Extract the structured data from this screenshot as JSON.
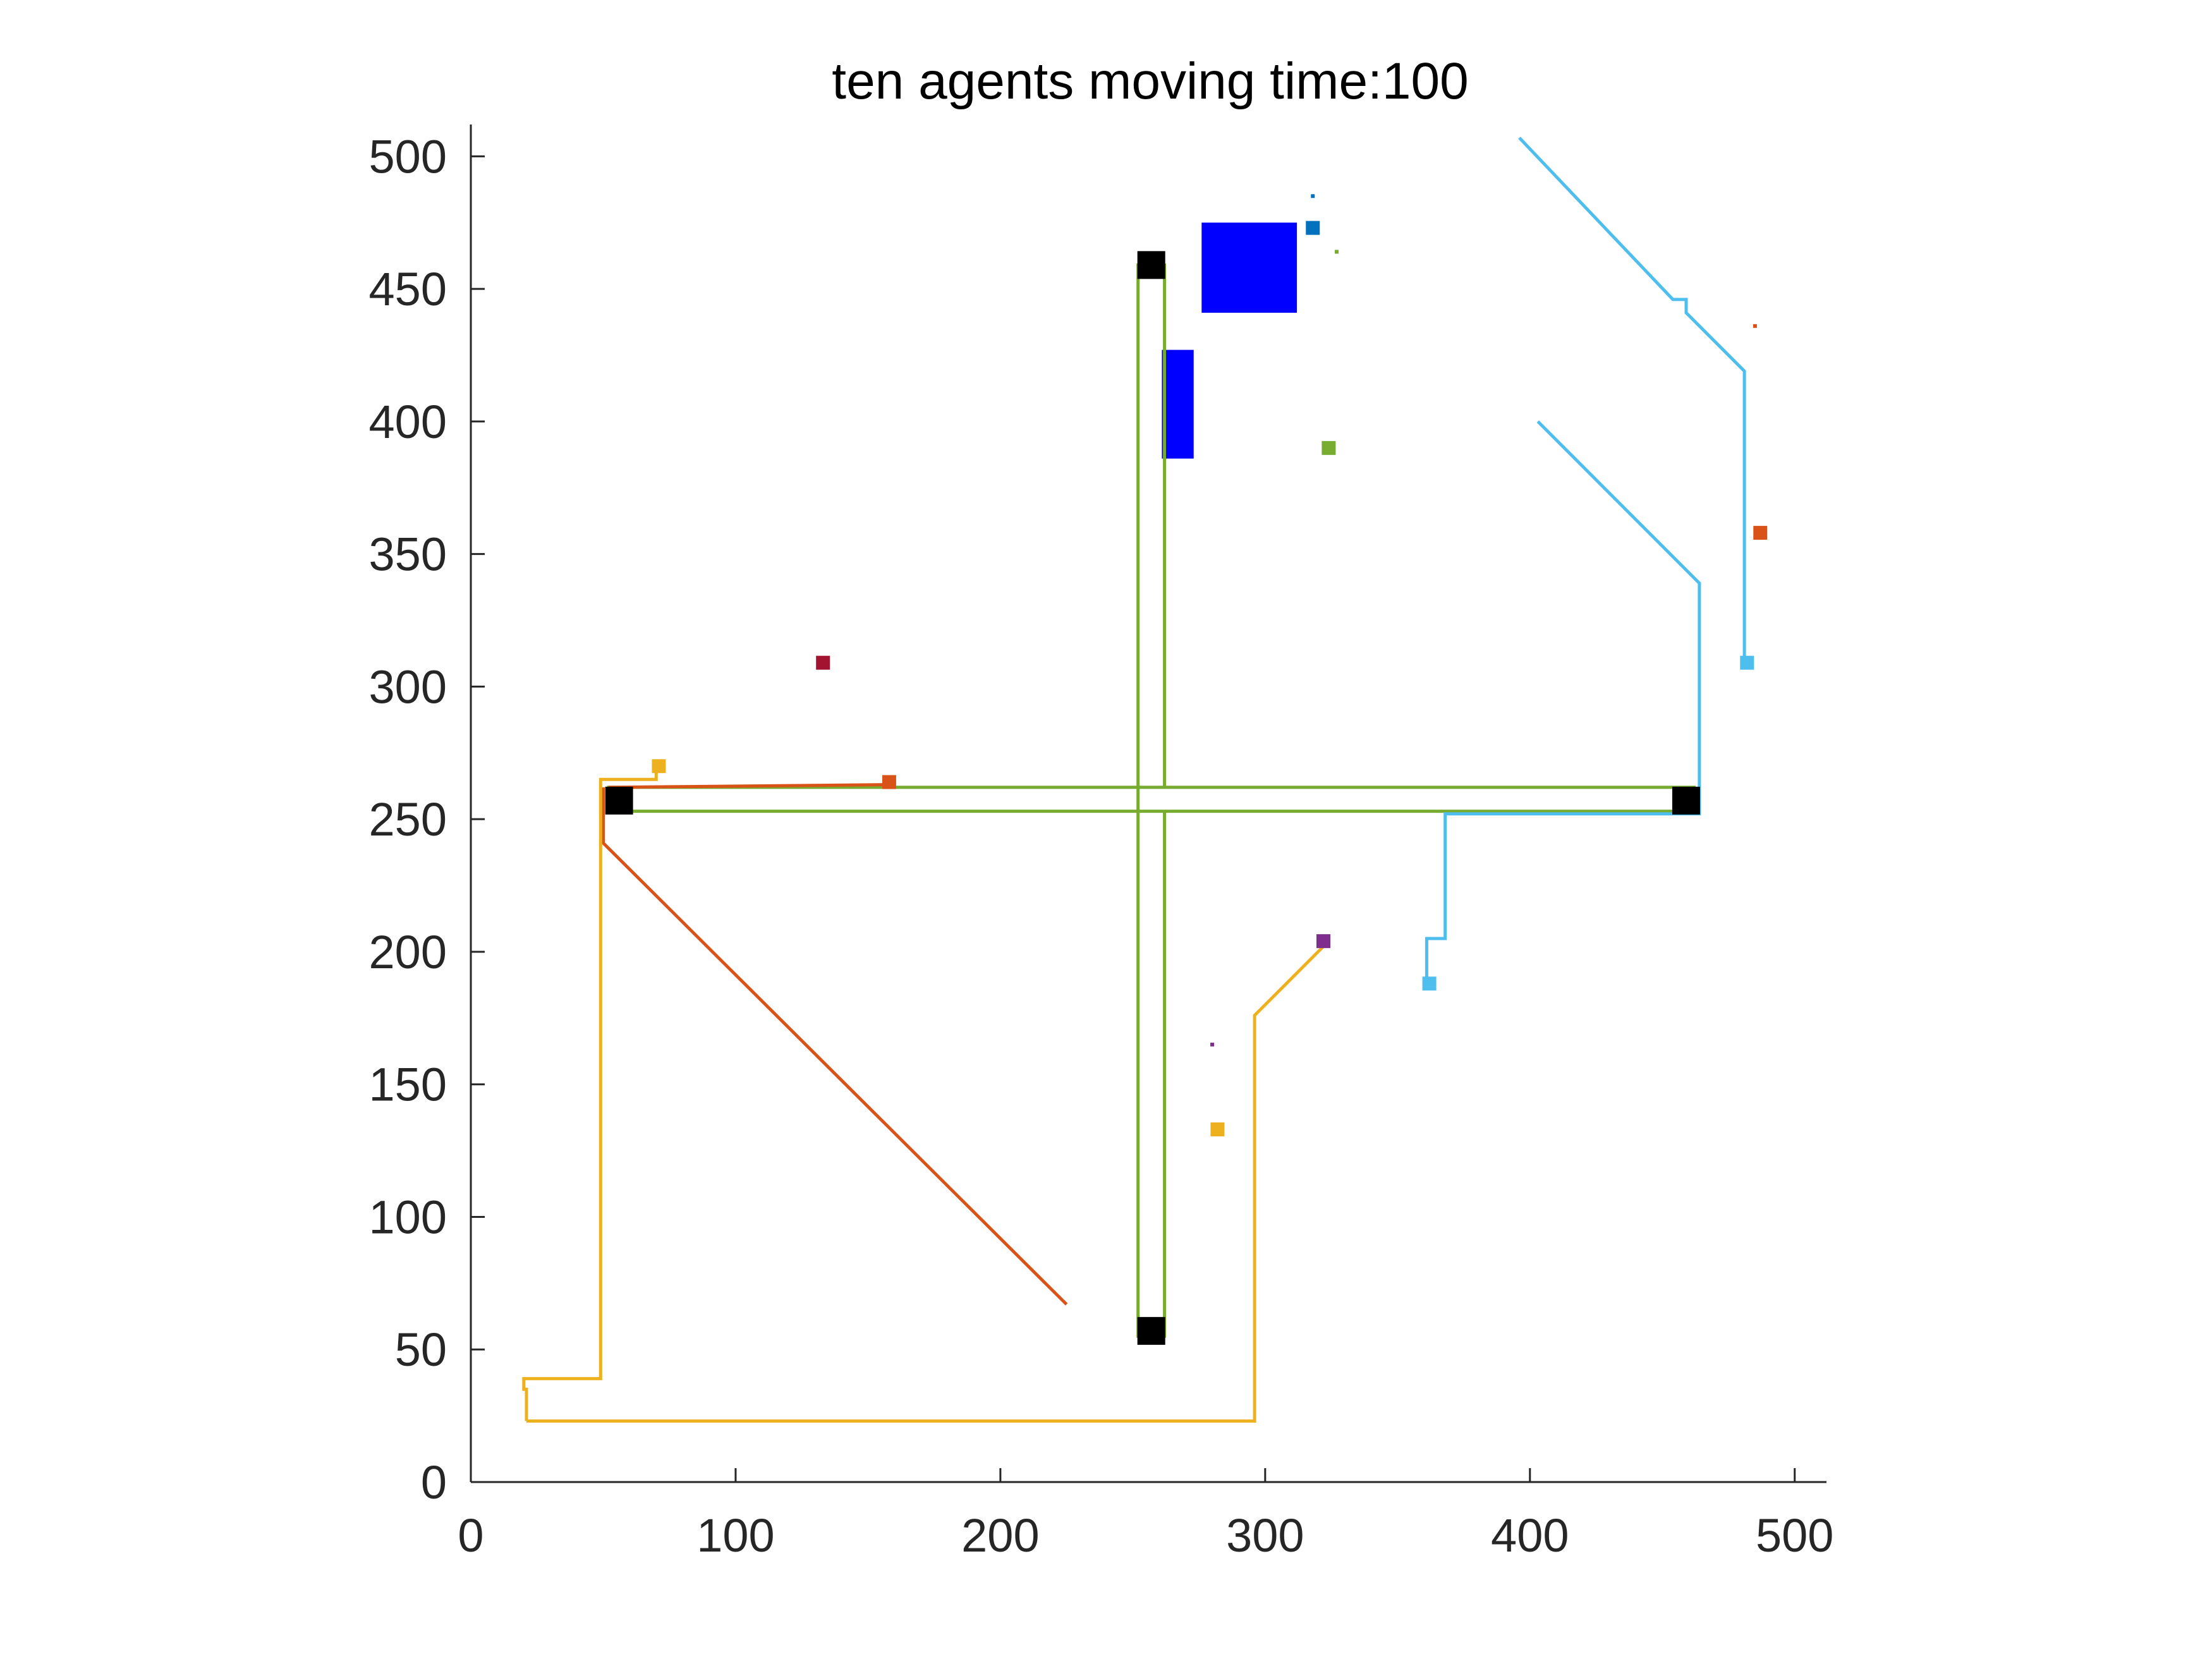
{
  "chart_data": {
    "type": "line",
    "title": "ten agents moving time:100",
    "xlabel": "",
    "ylabel": "",
    "xlim": [
      0,
      512
    ],
    "ylim": [
      0,
      512
    ],
    "xticks": [
      0,
      100,
      200,
      300,
      400,
      500
    ],
    "yticks": [
      0,
      50,
      100,
      150,
      200,
      250,
      300,
      350,
      400,
      450,
      500
    ],
    "grid": false,
    "legend": "none",
    "obstacles": [
      {
        "x": [
          276,
          312
        ],
        "y": [
          441,
          475
        ],
        "color": "#0000ff"
      },
      {
        "x": [
          261,
          273
        ],
        "y": [
          386,
          427
        ],
        "color": "#0000ff"
      }
    ],
    "waypoints": [
      {
        "x": 56,
        "y": 257,
        "color": "#000000"
      },
      {
        "x": 459,
        "y": 257,
        "color": "#000000"
      },
      {
        "x": 257,
        "y": 459,
        "color": "#000000"
      },
      {
        "x": 257,
        "y": 57,
        "color": "#000000"
      }
    ],
    "paths": [
      {
        "color": "#77ac30",
        "x": [
          252,
          252,
          262,
          262,
          252,
          252,
          462,
          462,
          52,
          52,
          252
        ],
        "y": [
          253,
          55,
          55,
          253,
          253,
          262,
          262,
          253,
          253,
          262,
          262
        ]
      },
      {
        "color": "#77ac30",
        "x": [
          252,
          252,
          262,
          262
        ],
        "y": [
          262,
          459,
          459,
          262
        ]
      },
      {
        "color": "#d95319",
        "x": [
          52,
          52,
          157
        ],
        "y": [
          262,
          262,
          263
        ]
      },
      {
        "color": "#d95319",
        "x": [
          225,
          50,
          50
        ],
        "y": [
          67,
          241,
          262
        ]
      },
      {
        "color": "#edb120",
        "x": [
          21,
          21,
          20,
          20,
          49,
          49,
          70,
          70
        ],
        "y": [
          23,
          35,
          35,
          39,
          39,
          265,
          265,
          269
        ]
      },
      {
        "color": "#edb120",
        "x": [
          21,
          296,
          296,
          305,
          322
        ],
        "y": [
          23,
          23,
          176,
          185,
          202
        ]
      },
      {
        "color": "#4dbeee",
        "x": [
          361,
          361,
          368,
          368,
          464,
          464,
          403
        ],
        "y": [
          188,
          205,
          205,
          252,
          252,
          339,
          400
        ]
      },
      {
        "color": "#4dbeee",
        "x": [
          481,
          481,
          459,
          459,
          454,
          396
        ],
        "y": [
          309,
          419,
          441,
          446,
          446,
          507
        ]
      }
    ],
    "agents": [
      {
        "x": 318,
        "y": 473,
        "color": "#0072bd"
      },
      {
        "x": 324,
        "y": 390,
        "color": "#77ac30"
      },
      {
        "x": 487,
        "y": 358,
        "color": "#d95319"
      },
      {
        "x": 482,
        "y": 309,
        "color": "#4dbeee"
      },
      {
        "x": 133,
        "y": 309,
        "color": "#a2142f"
      },
      {
        "x": 71,
        "y": 270,
        "color": "#edb120"
      },
      {
        "x": 158,
        "y": 264,
        "color": "#d95319"
      },
      {
        "x": 322,
        "y": 204,
        "color": "#7e2f8e"
      },
      {
        "x": 362,
        "y": 188,
        "color": "#4dbeee"
      },
      {
        "x": 282,
        "y": 133,
        "color": "#edb120"
      }
    ],
    "dots": [
      {
        "x": 318,
        "y": 485,
        "color": "#0072bd"
      },
      {
        "x": 327,
        "y": 464,
        "color": "#77ac30"
      },
      {
        "x": 485,
        "y": 436,
        "color": "#d95319"
      },
      {
        "x": 280,
        "y": 165,
        "color": "#7e2f8e"
      }
    ]
  }
}
